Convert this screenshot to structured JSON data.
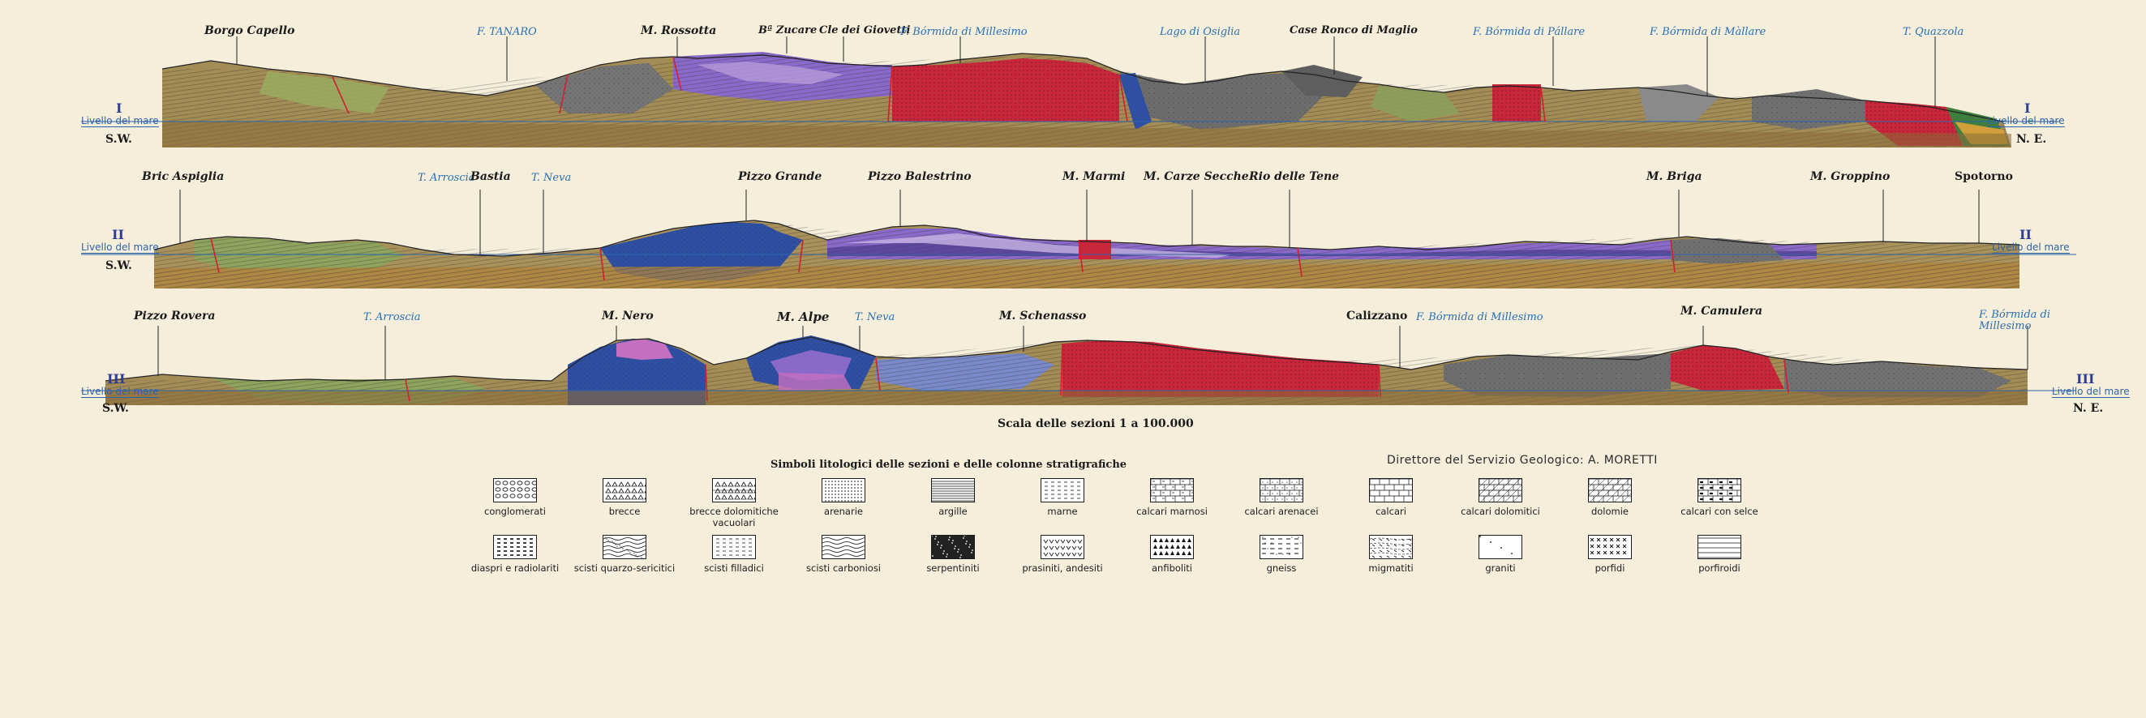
{
  "sections": [
    {
      "roman": "I",
      "sea_level": "Livello del mare",
      "sw": "S.W.",
      "ne": "N. E.",
      "places": [
        {
          "name": "Borgo Capello",
          "kind": "place"
        },
        {
          "name": "F. TANARO",
          "kind": "river"
        },
        {
          "name": "M. Rossotta",
          "kind": "place"
        },
        {
          "name": "Bª Zucare",
          "kind": "place"
        },
        {
          "name": "Cle dei Giovetti",
          "kind": "place"
        },
        {
          "name": "F. Bórmida di Millesimo",
          "kind": "river"
        },
        {
          "name": "Lago di Osiglia",
          "kind": "river"
        },
        {
          "name": "Case Ronco di Maglio",
          "kind": "place"
        },
        {
          "name": "F. Bórmida di Pállare",
          "kind": "river"
        },
        {
          "name": "F. Bórmida di Màllare",
          "kind": "river"
        },
        {
          "name": "T. Quazzola",
          "kind": "river"
        }
      ]
    },
    {
      "roman": "II",
      "sea_level": "Livello del mare",
      "sw": "S.W.",
      "ne": "",
      "places": [
        {
          "name": "Bric Aspiglia",
          "kind": "place"
        },
        {
          "name": "T. Arroscia",
          "kind": "river"
        },
        {
          "name": "Bastia",
          "kind": "place"
        },
        {
          "name": "T. Neva",
          "kind": "river"
        },
        {
          "name": "Pizzo Grande",
          "kind": "place"
        },
        {
          "name": "Pizzo Balestrino",
          "kind": "place"
        },
        {
          "name": "M. Marmi",
          "kind": "place"
        },
        {
          "name": "M. Carze Secche",
          "kind": "place"
        },
        {
          "name": "Rio delle Tene",
          "kind": "place"
        },
        {
          "name": "M. Briga",
          "kind": "place"
        },
        {
          "name": "M. Groppino",
          "kind": "place"
        },
        {
          "name": "Spotorno",
          "kind": "place"
        }
      ]
    },
    {
      "roman": "III",
      "sea_level": "Livello del mare",
      "sw": "S.W.",
      "ne": "N. E.",
      "places": [
        {
          "name": "Pizzo Rovera",
          "kind": "place"
        },
        {
          "name": "T. Arroscia",
          "kind": "river"
        },
        {
          "name": "M. Nero",
          "kind": "place"
        },
        {
          "name": "M. Alpe",
          "kind": "place"
        },
        {
          "name": "T. Neva",
          "kind": "river"
        },
        {
          "name": "M. Schenasso",
          "kind": "place"
        },
        {
          "name": "Calizzano",
          "kind": "place"
        },
        {
          "name": "F. Bórmida di Millesimo",
          "kind": "river"
        },
        {
          "name": "M. Camulera",
          "kind": "place"
        },
        {
          "name": "F. Bórmida di Millesimo",
          "kind": "river"
        }
      ]
    }
  ],
  "scale": "Scala delle sezioni 1 a 100.000",
  "legend_title": "Simboli litologici delle sezioni e delle colonne stratigrafiche",
  "director": "Direttore del Servizio Geologico: A. MORETTI",
  "legend": [
    {
      "label": "conglomerati",
      "pattern": "circles"
    },
    {
      "label": "brecce",
      "pattern": "triangles"
    },
    {
      "label": "brecce dolomitiche vacuolari",
      "pattern": "triangles-bricks"
    },
    {
      "label": "arenarie",
      "pattern": "dots"
    },
    {
      "label": "argille",
      "pattern": "hlines"
    },
    {
      "label": "marne",
      "pattern": "dashes"
    },
    {
      "label": "calcari marnosi",
      "pattern": "bricks-dash"
    },
    {
      "label": "calcari arenacei",
      "pattern": "bricks-dots"
    },
    {
      "label": "calcari",
      "pattern": "bricks"
    },
    {
      "label": "calcari dolomitici",
      "pattern": "bricks-diag"
    },
    {
      "label": "dolomie",
      "pattern": "diag-bricks"
    },
    {
      "label": "calcari con selce",
      "pattern": "bricks-blobs"
    },
    {
      "label": "diaspri e radiolariti",
      "pattern": "dark-dashes"
    },
    {
      "label": "scisti quarzo-sericitici",
      "pattern": "waves-dots"
    },
    {
      "label": "scisti filladici",
      "pattern": "fine-dashes"
    },
    {
      "label": "scisti carboniosi",
      "pattern": "waves"
    },
    {
      "label": "serpentiniti",
      "pattern": "dark"
    },
    {
      "label": "prasiniti, andesiti",
      "pattern": "vees"
    },
    {
      "label": "anfiboliti",
      "pattern": "carets"
    },
    {
      "label": "gneiss",
      "pattern": "gneiss"
    },
    {
      "label": "migmatiti",
      "pattern": "migma"
    },
    {
      "label": "graniti",
      "pattern": "plus-dots"
    },
    {
      "label": "porfidi",
      "pattern": "crosses"
    },
    {
      "label": "porfiroidi",
      "pattern": "thin-lines"
    }
  ],
  "colors": {
    "background": "#f4eedb",
    "red": "#c8263a",
    "purple": "#8a6ac9",
    "blue": "#2f4fa3",
    "olive": "#8a7a3a",
    "gray": "#6c6c6c",
    "green": "#7f9a4a"
  }
}
